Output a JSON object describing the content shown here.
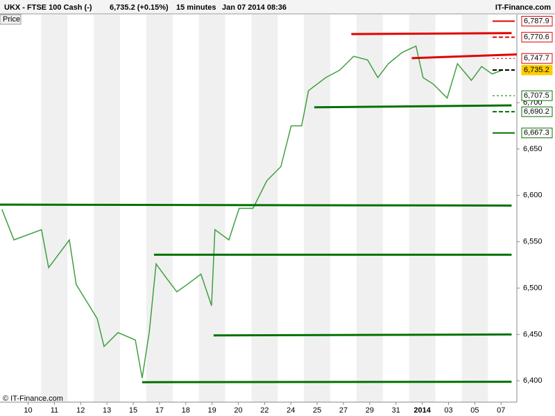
{
  "chart_data": {
    "type": "line",
    "title": "UKX - FTSE 100 Cash (-)",
    "subtitle": "6,735.2 (+0.15%)",
    "interval": "15 minutes",
    "timestamp": "Jan 07 2014 08:36",
    "brand": "IT-Finance.com",
    "copyright": "© IT-Finance.com",
    "xlim": [
      -1.07,
      18.6
    ],
    "xticks": [
      {
        "value": 0,
        "label": "10"
      },
      {
        "value": 1,
        "label": "11"
      },
      {
        "value": 2,
        "label": "12"
      },
      {
        "value": 3,
        "label": "13"
      },
      {
        "value": 4,
        "label": "15"
      },
      {
        "value": 5,
        "label": "17"
      },
      {
        "value": 6,
        "label": "18"
      },
      {
        "value": 7,
        "label": "19"
      },
      {
        "value": 8,
        "label": "20"
      },
      {
        "value": 9,
        "label": "22"
      },
      {
        "value": 10,
        "label": "24"
      },
      {
        "value": 11,
        "label": "25"
      },
      {
        "value": 12,
        "label": "27"
      },
      {
        "value": 13,
        "label": "29"
      },
      {
        "value": 14,
        "label": "31"
      },
      {
        "value": 15,
        "label": "2014"
      },
      {
        "value": 16,
        "label": "03"
      },
      {
        "value": 17,
        "label": "05"
      },
      {
        "value": 18,
        "label": "07"
      }
    ],
    "ylim": [
      6377,
      6795
    ],
    "yticks": [
      {
        "value": 6400,
        "label": "6,400"
      },
      {
        "value": 6450,
        "label": "6,450"
      },
      {
        "value": 6500,
        "label": "6,500"
      },
      {
        "value": 6550,
        "label": "6,550"
      },
      {
        "value": 6600,
        "label": "6,600"
      },
      {
        "value": 6650,
        "label": "6,650"
      },
      {
        "value": 6700,
        "label": "6,700"
      }
    ],
    "series": [
      {
        "name": "Price",
        "color": "#3f9f3f",
        "x": [
          -1.0,
          -0.54,
          0.51,
          0.78,
          1.57,
          1.83,
          2.63,
          2.89,
          3.42,
          4.08,
          4.34,
          4.61,
          4.87,
          5.26,
          5.66,
          6.06,
          6.58,
          6.98,
          7.11,
          7.64,
          8.03,
          8.56,
          9.09,
          9.62,
          10.01,
          10.41,
          10.67,
          11.33,
          11.86,
          12.39,
          12.92,
          13.31,
          13.71,
          14.23,
          14.76,
          15.03,
          15.42,
          15.95,
          16.34,
          16.87,
          17.26,
          17.66,
          18.06
        ],
        "values": [
          6585,
          6552,
          6563,
          6522,
          6552,
          6504,
          6467,
          6437,
          6452,
          6444,
          6403,
          6452,
          6526,
          6511,
          6496,
          6504,
          6515,
          6481,
          6563,
          6552,
          6586,
          6586,
          6616,
          6631,
          6675,
          6675,
          6713,
          6727,
          6735,
          6750,
          6746,
          6727,
          6742,
          6754,
          6761,
          6727,
          6720,
          6705,
          6742,
          6724,
          6739,
          6731,
          6735.2
        ]
      }
    ],
    "trendlines": [
      {
        "color": "#e00000",
        "x": [
          12.3,
          18.4
        ],
        "y": [
          6774,
          6775
        ]
      },
      {
        "color": "#e00000",
        "x": [
          14.6,
          18.6
        ],
        "y": [
          6748,
          6752
        ]
      },
      {
        "color": "#007000",
        "x": [
          10.89,
          18.4
        ],
        "y": [
          6695,
          6697
        ]
      },
      {
        "color": "#007000",
        "x": [
          -1.07,
          18.4
        ],
        "y": [
          6590,
          6589
        ]
      },
      {
        "color": "#007000",
        "x": [
          4.79,
          18.4
        ],
        "y": [
          6536,
          6536
        ]
      },
      {
        "color": "#007000",
        "x": [
          7.06,
          18.4
        ],
        "y": [
          6449,
          6450
        ]
      },
      {
        "color": "#007000",
        "x": [
          4.34,
          18.4
        ],
        "y": [
          6398.5,
          6399
        ]
      }
    ],
    "levels": {
      "values": [
        6787.9,
        6770.6,
        6747.7,
        6735.2,
        6707.5,
        6690.2,
        6667.3
      ],
      "value_labels": [
        "6,787.9",
        "6,770.6",
        "6,747.7",
        "6,735.2",
        "6,707.5",
        "6,690.2",
        "6,667.3"
      ],
      "colors": [
        "#e00000",
        "#e00000",
        "#e00000",
        "#000000",
        "#007000",
        "#007000",
        "#007000"
      ],
      "styles": [
        "solid",
        "dashed",
        "dotted",
        "dashed",
        "dotted",
        "dashed",
        "solid"
      ],
      "current": 3
    }
  }
}
